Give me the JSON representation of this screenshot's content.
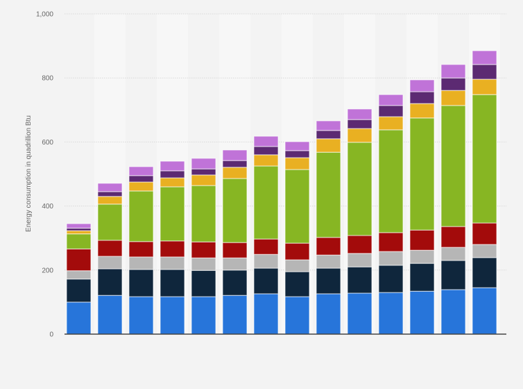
{
  "chart_data": {
    "type": "bar",
    "stacked": true,
    "title": "",
    "xlabel": "",
    "ylabel": "Energy consumption in quadrillion Btu",
    "ylim": [
      0,
      1000
    ],
    "yticks": [
      0,
      200,
      400,
      600,
      800,
      1000
    ],
    "ytick_labels": [
      "0",
      "200",
      "400",
      "600",
      "800",
      "1,000"
    ],
    "grid": true,
    "legend": "none",
    "bar_count": 14,
    "series": [
      {
        "color": "#2775da",
        "values": [
          100,
          121,
          117,
          117,
          117,
          121,
          126,
          117,
          126,
          128,
          130,
          134,
          139,
          145
        ]
      },
      {
        "color": "#0f263c",
        "values": [
          72,
          83,
          85,
          85,
          82,
          79,
          80,
          78,
          80,
          82,
          85,
          87,
          91,
          94
        ]
      },
      {
        "color": "#b6b6b6",
        "values": [
          26,
          39,
          39,
          39,
          39,
          38,
          43,
          37,
          41,
          42,
          43,
          41,
          41,
          41
        ]
      },
      {
        "color": "#a30b0b",
        "values": [
          68,
          50,
          48,
          50,
          50,
          48,
          48,
          52,
          55,
          56,
          59,
          63,
          65,
          67
        ]
      },
      {
        "color": "#87b623",
        "values": [
          47,
          113,
          158,
          169,
          176,
          200,
          228,
          230,
          266,
          291,
          321,
          350,
          378,
          401
        ]
      },
      {
        "color": "#e9b022",
        "values": [
          10,
          24,
          28,
          28,
          33,
          35,
          35,
          37,
          42,
          43,
          41,
          45,
          47,
          48
        ]
      },
      {
        "color": "#5c2a72",
        "values": [
          8,
          15,
          20,
          22,
          19,
          21,
          26,
          22,
          26,
          28,
          35,
          37,
          39,
          46
        ]
      },
      {
        "color": "#c073d8",
        "values": [
          14,
          26,
          28,
          30,
          33,
          33,
          32,
          28,
          30,
          33,
          34,
          37,
          42,
          43
        ]
      }
    ]
  }
}
